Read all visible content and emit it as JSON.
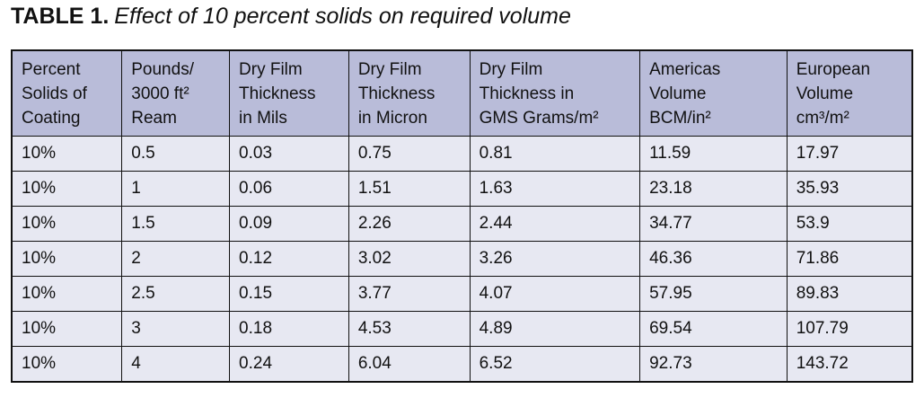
{
  "title": {
    "label": "TABLE 1.",
    "caption": "Effect of 10 percent solids on required volume"
  },
  "table": {
    "header": [
      [
        "Percent",
        "Solids of",
        "Coating"
      ],
      [
        "Pounds/",
        "3000 ft²",
        "Ream"
      ],
      [
        "Dry Film",
        "Thickness",
        "in Mils"
      ],
      [
        "Dry Film",
        "Thickness",
        "in Micron"
      ],
      [
        "Dry Film",
        "Thickness in",
        "GMS Grams/m²"
      ],
      [
        "Americas",
        "Volume",
        "BCM/in²"
      ],
      [
        "European",
        "Volume",
        "cm³/m²"
      ]
    ],
    "rows": [
      [
        "10%",
        "0.5",
        "0.03",
        "0.75",
        "0.81",
        "11.59",
        "17.97"
      ],
      [
        "10%",
        "1",
        "0.06",
        "1.51",
        "1.63",
        "23.18",
        "35.93"
      ],
      [
        "10%",
        "1.5",
        "0.09",
        "2.26",
        "2.44",
        "34.77",
        "53.9"
      ],
      [
        "10%",
        "2",
        "0.12",
        "3.02",
        "3.26",
        "46.36",
        "71.86"
      ],
      [
        "10%",
        "2.5",
        "0.15",
        "3.77",
        "4.07",
        "57.95",
        "89.83"
      ],
      [
        "10%",
        "3",
        "0.18",
        "4.53",
        "4.89",
        "69.54",
        "107.79"
      ],
      [
        "10%",
        "4",
        "0.24",
        "6.04",
        "6.52",
        "92.73",
        "143.72"
      ]
    ]
  }
}
